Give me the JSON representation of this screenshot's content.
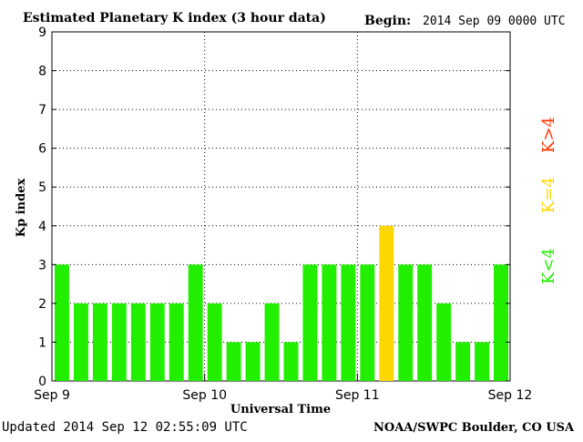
{
  "header": {
    "title": "Estimated Planetary K index (3 hour data)",
    "begin_label": "Begin:",
    "begin_value": "2014 Sep 09 0000 UTC"
  },
  "footer": {
    "updated": "Updated 2014 Sep 12 02:55:09 UTC",
    "source": "NOAA/SWPC Boulder, CO USA"
  },
  "colors": {
    "low": "#22ee00",
    "moderate": "#ffd700",
    "high": "#ff3300",
    "grid": "#000000"
  },
  "legend": {
    "low": "K<4",
    "moderate": "K=4",
    "high": "K>4"
  },
  "chart_data": {
    "type": "bar",
    "title": "Estimated Planetary K index (3 hour data)",
    "xlabel": "Universal Time",
    "ylabel": "Kp index",
    "ylim": [
      0,
      9
    ],
    "yticks": [
      0,
      1,
      2,
      3,
      4,
      5,
      6,
      7,
      8,
      9
    ],
    "xticks": [
      "Sep 9",
      "Sep 10",
      "Sep 11",
      "Sep 12"
    ],
    "interval_hours": 3,
    "grid": true,
    "values": [
      3,
      2,
      2,
      2,
      2,
      2,
      2,
      3,
      2,
      1,
      1,
      2,
      1,
      3,
      3,
      3,
      3,
      4,
      3,
      3,
      2,
      1,
      1,
      3
    ]
  }
}
